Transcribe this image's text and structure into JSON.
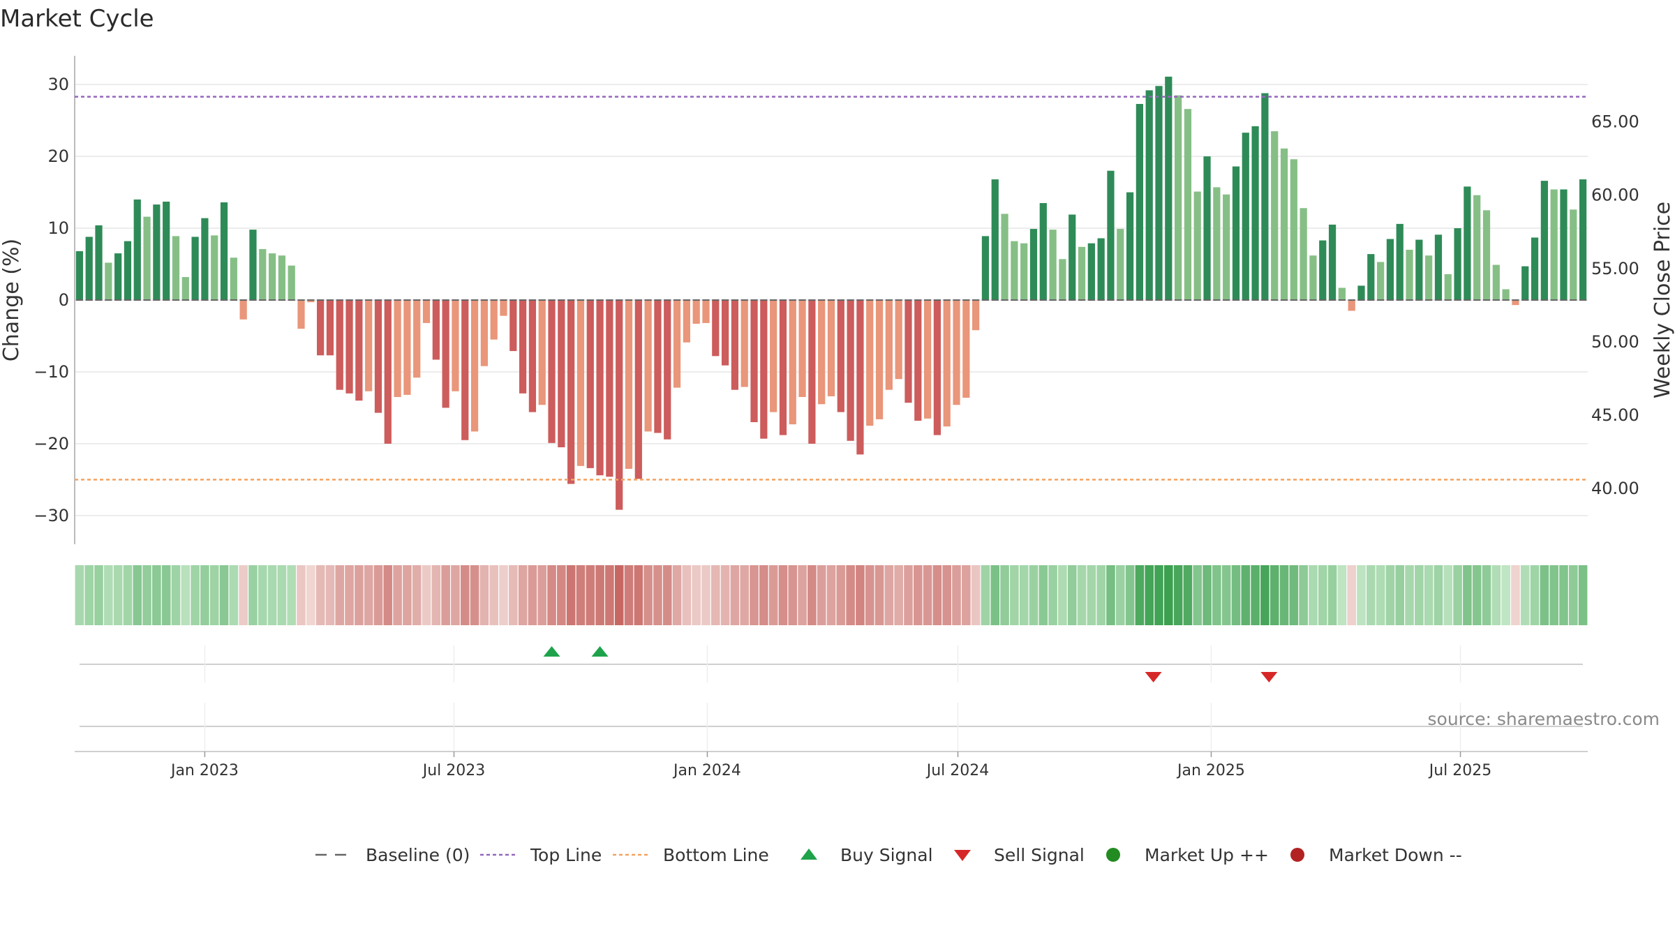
{
  "chart_data": {
    "type": "bar",
    "title": "Market Cycle",
    "ylabel_left": "Change (%)",
    "ylabel_right": "Weekly Close Price",
    "ylim": [
      -34,
      34
    ],
    "y_ticks": [
      30,
      20,
      10,
      0,
      -10,
      -20,
      -30
    ],
    "y_tick_labels": [
      "30",
      "20",
      "10",
      "0",
      "−10",
      "−20",
      "−30"
    ],
    "right_ylim": [
      36.2,
      69.5
    ],
    "right_ticks": [
      65.0,
      60.0,
      55.0,
      50.0,
      45.0,
      40.0
    ],
    "right_tick_labels": [
      "65.00",
      "60.00",
      "55.00",
      "50.00",
      "45.00",
      "40.00"
    ],
    "top_line": 28.3,
    "bottom_line": -25.0,
    "date_start": "2022-10-02",
    "week_step_days": 7,
    "x_ticks": [
      {
        "date": "2023-01-01",
        "label": "Jan 2023"
      },
      {
        "date": "2023-07-01",
        "label": "Jul 2023"
      },
      {
        "date": "2024-01-01",
        "label": "Jan 2024"
      },
      {
        "date": "2024-07-01",
        "label": "Jul 2024"
      },
      {
        "date": "2025-01-01",
        "label": "Jan 2025"
      },
      {
        "date": "2025-07-01",
        "label": "Jul 2025"
      }
    ],
    "values": [
      6.8,
      8.8,
      10.4,
      5.2,
      6.5,
      8.2,
      14.0,
      11.6,
      13.3,
      13.7,
      8.9,
      3.2,
      8.8,
      11.4,
      9.0,
      13.6,
      5.9,
      -2.7,
      9.8,
      7.1,
      6.5,
      6.2,
      4.8,
      -4.0,
      -0.3,
      -7.7,
      -7.7,
      -12.5,
      -13.0,
      -14.0,
      -12.7,
      -15.7,
      -20.0,
      -13.5,
      -13.2,
      -10.8,
      -3.2,
      -8.3,
      -15.0,
      -12.7,
      -19.5,
      -18.3,
      -9.2,
      -5.5,
      -2.2,
      -7.1,
      -13.0,
      -15.6,
      -14.6,
      -19.9,
      -20.5,
      -25.6,
      -23.1,
      -23.4,
      -24.4,
      -24.6,
      -29.2,
      -23.5,
      -24.9,
      -18.3,
      -18.5,
      -19.4,
      -12.2,
      -5.9,
      -3.3,
      -3.2,
      -7.8,
      -9.1,
      -12.5,
      -12.1,
      -17.0,
      -19.3,
      -15.6,
      -18.8,
      -17.3,
      -13.5,
      -20.0,
      -14.5,
      -13.4,
      -15.6,
      -19.6,
      -21.5,
      -17.5,
      -16.6,
      -12.5,
      -11.0,
      -14.3,
      -16.8,
      -16.5,
      -18.8,
      -17.6,
      -14.6,
      -13.6,
      -4.2,
      8.9,
      16.8,
      12.0,
      8.2,
      7.9,
      9.9,
      13.5,
      9.8,
      5.7,
      11.9,
      7.4,
      7.9,
      8.6,
      18.0,
      9.9,
      15.0,
      27.3,
      29.2,
      29.8,
      31.1,
      28.5,
      26.6,
      15.1,
      20.0,
      15.7,
      14.7,
      18.6,
      23.3,
      24.2,
      28.8,
      23.5,
      21.1,
      19.6,
      12.8,
      6.2,
      8.3,
      10.5,
      1.7,
      -1.5,
      2.0,
      6.4,
      5.3,
      8.5,
      10.6,
      7.0,
      8.4,
      6.2,
      9.1,
      3.6,
      10.0,
      15.8,
      14.6,
      12.5,
      4.9,
      1.5,
      -0.7,
      4.7,
      8.7,
      16.6,
      15.4,
      15.4,
      12.6,
      16.8
    ],
    "buy_signals": [
      {
        "date": "2023-09-10",
        "label": "Buy Signal"
      },
      {
        "date": "2023-10-15",
        "label": "Buy Signal"
      }
    ],
    "sell_signals": [
      {
        "date": "2024-11-20",
        "label": "Sell Signal"
      },
      {
        "date": "2025-02-12",
        "label": "Sell Signal"
      }
    ],
    "source": "source: sharemaestro.com",
    "colors": {
      "pos_dark": "#2e8b57",
      "pos_light": "#86bf86",
      "neg_dark": "#cd5c5c",
      "neg_light": "#e9967a",
      "top_line": "#9467bd",
      "bottom_line": "#f4a261",
      "buy": "#1fa34a",
      "sell": "#d62728",
      "market_up": "#228b22",
      "market_down": "#b22222",
      "baseline": "#666666"
    },
    "legend": [
      {
        "label": "Baseline (0)",
        "kind": "dash",
        "color": "#666666"
      },
      {
        "label": "Top Line",
        "kind": "dot",
        "color": "#9467bd"
      },
      {
        "label": "Bottom Line",
        "kind": "dot",
        "color": "#f4a261"
      },
      {
        "label": "Buy Signal",
        "kind": "up",
        "color": "#1fa34a"
      },
      {
        "label": "Sell Signal",
        "kind": "down",
        "color": "#d62728"
      },
      {
        "label": "Market Up ++",
        "kind": "circle",
        "color": "#228b22"
      },
      {
        "label": "Market Down --",
        "kind": "circle",
        "color": "#b22222"
      }
    ]
  }
}
